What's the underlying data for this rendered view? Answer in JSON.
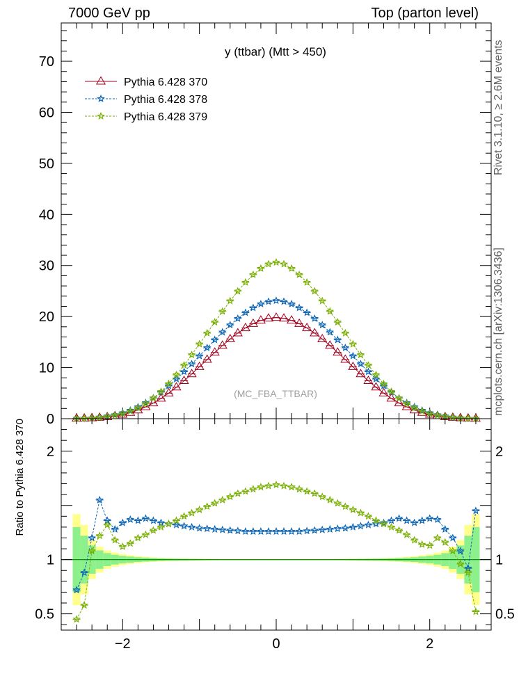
{
  "header": {
    "left": "7000 GeV pp",
    "right": "Top (parton level)"
  },
  "side_labels": {
    "rivet": "Rivet 3.1.10, ≥ 2.6M events",
    "mcplots": "mcplots.cern.ch [arXiv:1306.3436]"
  },
  "colors": {
    "s370": "#a0001c",
    "s378": "#0a64b4",
    "s379": "#78ae00",
    "band_inner": "#8cf08c",
    "band_outer": "#ffff8c",
    "ref_line": "#008000"
  },
  "chart_data": [
    {
      "type": "line",
      "title": "y (ttbar) (Mtt > 450)",
      "watermark": "(MC_FBA_TTBAR)",
      "xlabel": "",
      "ylabel": "",
      "xlim": [
        -2.8,
        2.8
      ],
      "ylim": [
        0,
        77.5
      ],
      "yticks": [
        0,
        10,
        20,
        30,
        40,
        50,
        60,
        70
      ],
      "legend_position": "top-left",
      "x": [
        -2.6,
        -2.5,
        -2.4,
        -2.3,
        -2.2,
        -2.1,
        -2.0,
        -1.9,
        -1.8,
        -1.7,
        -1.6,
        -1.5,
        -1.4,
        -1.3,
        -1.2,
        -1.1,
        -1.0,
        -0.9,
        -0.8,
        -0.7,
        -0.6,
        -0.5,
        -0.4,
        -0.3,
        -0.2,
        -0.1,
        0.0,
        0.1,
        0.2,
        0.3,
        0.4,
        0.5,
        0.6,
        0.7,
        0.8,
        0.9,
        1.0,
        1.1,
        1.2,
        1.3,
        1.4,
        1.5,
        1.6,
        1.7,
        1.8,
        1.9,
        2.0,
        2.1,
        2.2,
        2.3,
        2.4,
        2.5,
        2.6
      ],
      "series": [
        {
          "name": "Pythia 6.428 370",
          "marker": "triangle",
          "values": [
            0.05,
            0.08,
            0.13,
            0.22,
            0.35,
            0.55,
            0.82,
            1.19,
            1.68,
            2.3,
            3.06,
            3.97,
            5.0,
            6.16,
            7.42,
            8.76,
            10.16,
            11.58,
            12.98,
            14.33,
            15.6,
            16.76,
            17.77,
            18.61,
            19.25,
            19.65,
            19.8,
            19.65,
            19.25,
            18.61,
            17.77,
            16.76,
            15.6,
            14.33,
            12.98,
            11.58,
            10.16,
            8.76,
            7.42,
            6.16,
            5.0,
            3.97,
            3.06,
            2.3,
            1.68,
            1.19,
            0.82,
            0.55,
            0.35,
            0.22,
            0.13,
            0.08,
            0.05
          ]
        },
        {
          "name": "Pythia 6.428 378",
          "marker": "star",
          "values": [
            0.04,
            0.07,
            0.14,
            0.3,
            0.5,
            0.75,
            1.15,
            1.64,
            2.3,
            3.1,
            4.05,
            5.2,
            6.42,
            7.77,
            9.2,
            10.72,
            12.29,
            13.88,
            15.44,
            16.95,
            18.35,
            19.62,
            20.76,
            21.71,
            22.46,
            22.94,
            23.12,
            22.94,
            22.46,
            21.71,
            20.76,
            19.62,
            18.35,
            16.95,
            15.44,
            13.88,
            12.29,
            10.72,
            9.2,
            7.77,
            6.42,
            5.2,
            4.05,
            3.1,
            2.3,
            1.64,
            1.15,
            0.75,
            0.5,
            0.3,
            0.14,
            0.07,
            0.04
          ]
        },
        {
          "name": "Pythia 6.428 379",
          "marker": "star",
          "values": [
            0.03,
            0.05,
            0.11,
            0.24,
            0.41,
            0.66,
            1.0,
            1.48,
            2.12,
            2.96,
            4.02,
            5.3,
            6.84,
            8.58,
            10.48,
            12.51,
            14.61,
            16.76,
            18.91,
            21.02,
            23.06,
            24.97,
            26.7,
            28.2,
            29.42,
            30.28,
            30.62,
            30.28,
            29.42,
            28.2,
            26.7,
            24.97,
            23.06,
            21.02,
            18.91,
            16.76,
            14.61,
            12.51,
            10.48,
            8.58,
            6.84,
            5.3,
            4.02,
            2.96,
            2.12,
            1.48,
            1.0,
            0.66,
            0.41,
            0.24,
            0.11,
            0.05,
            0.03
          ]
        }
      ]
    },
    {
      "type": "line",
      "xlabel": "",
      "ylabel": "Ratio to Pythia 6.428 370",
      "xlim": [
        -2.8,
        2.8
      ],
      "ylim": [
        0.35,
        2.3
      ],
      "yticks": [
        0.5,
        1,
        2
      ],
      "xticks": [
        -2,
        0,
        2
      ],
      "band_halfwidth_inner": [
        0.3,
        0.22,
        0.13,
        0.085,
        0.06,
        0.045,
        0.035,
        0.028,
        0.022,
        0.018,
        0.015,
        0.012,
        0.01,
        0.009,
        0.008,
        0.007,
        0.006,
        0.005,
        0.005,
        0.004,
        0.004,
        0.004,
        0.004,
        0.004,
        0.004,
        0.004,
        0.004,
        0.004,
        0.004,
        0.004,
        0.004,
        0.004,
        0.004,
        0.004,
        0.005,
        0.005,
        0.006,
        0.007,
        0.008,
        0.009,
        0.01,
        0.012,
        0.015,
        0.018,
        0.022,
        0.028,
        0.035,
        0.045,
        0.06,
        0.085,
        0.13,
        0.22,
        0.3
      ],
      "band_halfwidth_outer": [
        0.42,
        0.32,
        0.18,
        0.12,
        0.085,
        0.065,
        0.05,
        0.04,
        0.032,
        0.026,
        0.021,
        0.017,
        0.014,
        0.012,
        0.011,
        0.01,
        0.009,
        0.008,
        0.007,
        0.006,
        0.006,
        0.006,
        0.006,
        0.006,
        0.006,
        0.006,
        0.006,
        0.006,
        0.006,
        0.006,
        0.006,
        0.006,
        0.006,
        0.006,
        0.007,
        0.008,
        0.009,
        0.01,
        0.011,
        0.012,
        0.014,
        0.017,
        0.021,
        0.026,
        0.032,
        0.04,
        0.05,
        0.065,
        0.085,
        0.12,
        0.18,
        0.32,
        0.42
      ],
      "series": [
        {
          "name": "Pythia 6.428 378",
          "values": [
            0.72,
            0.88,
            1.2,
            1.55,
            1.36,
            1.28,
            1.34,
            1.37,
            1.36,
            1.38,
            1.36,
            1.34,
            1.33,
            1.32,
            1.31,
            1.3,
            1.29,
            1.285,
            1.28,
            1.275,
            1.27,
            1.265,
            1.26,
            1.26,
            1.26,
            1.26,
            1.26,
            1.26,
            1.26,
            1.26,
            1.265,
            1.27,
            1.275,
            1.28,
            1.285,
            1.29,
            1.3,
            1.31,
            1.32,
            1.33,
            1.34,
            1.36,
            1.38,
            1.36,
            1.34,
            1.36,
            1.38,
            1.37,
            1.28,
            1.2,
            1.08,
            0.92,
            1.45
          ]
        },
        {
          "name": "Pythia 6.428 379",
          "values": [
            0.45,
            0.58,
            1.08,
            1.22,
            1.32,
            1.18,
            1.12,
            1.15,
            1.2,
            1.23,
            1.27,
            1.3,
            1.33,
            1.36,
            1.4,
            1.43,
            1.46,
            1.49,
            1.52,
            1.55,
            1.58,
            1.61,
            1.63,
            1.65,
            1.67,
            1.68,
            1.69,
            1.68,
            1.67,
            1.65,
            1.63,
            1.61,
            1.58,
            1.55,
            1.52,
            1.49,
            1.46,
            1.43,
            1.4,
            1.36,
            1.33,
            1.3,
            1.27,
            1.23,
            1.18,
            1.14,
            1.13,
            1.2,
            1.16,
            1.08,
            0.96,
            0.88,
            0.52
          ]
        }
      ]
    }
  ]
}
